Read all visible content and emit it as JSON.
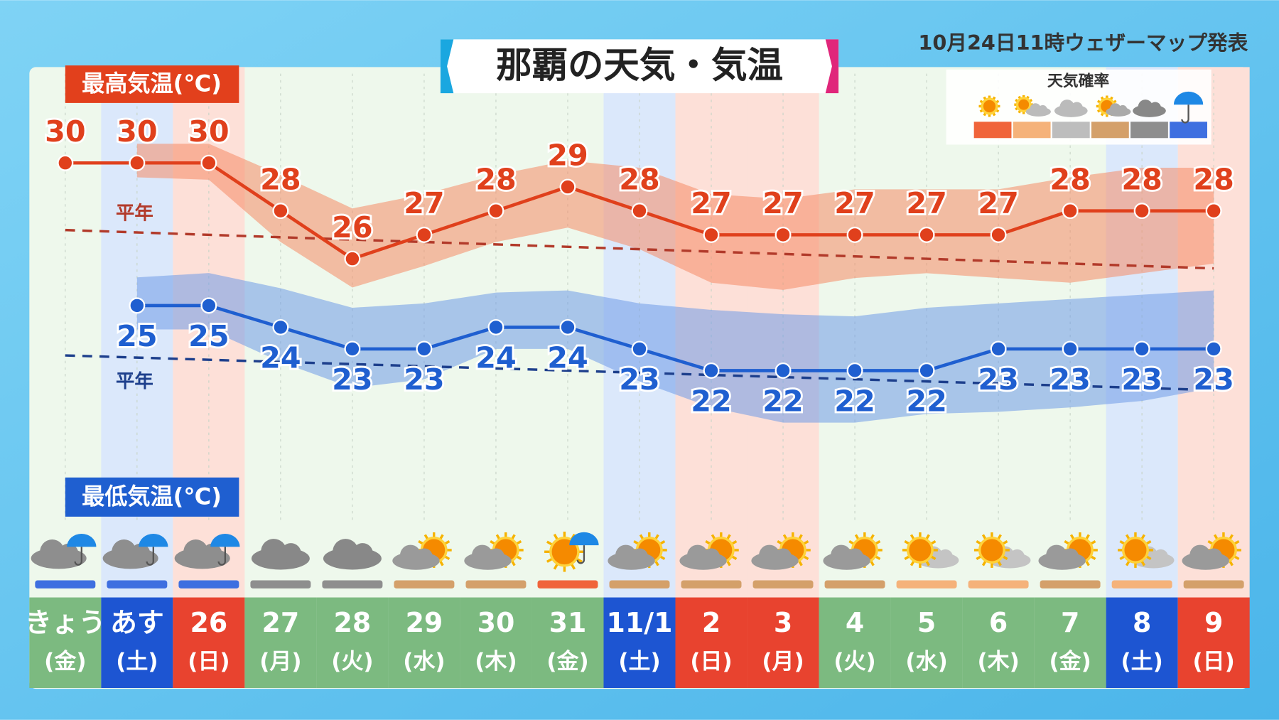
{
  "chart_data": {
    "type": "line",
    "title": "那覇の天気・気温",
    "subtitle": "10月24日11時ウェザーマップ発表",
    "categories": [
      "きょう",
      "あす",
      "26",
      "27",
      "28",
      "29",
      "30",
      "31",
      "11/1",
      "2",
      "3",
      "4",
      "5",
      "6",
      "7",
      "8",
      "9"
    ],
    "weekdays": [
      "(金)",
      "(土)",
      "(日)",
      "(月)",
      "(火)",
      "(水)",
      "(木)",
      "(金)",
      "(土)",
      "(日)",
      "(月)",
      "(火)",
      "(水)",
      "(木)",
      "(金)",
      "(土)",
      "(日)"
    ],
    "column_colors": [
      "#7cba80",
      "#1d55d2",
      "#e8432f",
      "#7cba80",
      "#7cba80",
      "#7cba80",
      "#7cba80",
      "#7cba80",
      "#1d55d2",
      "#e8432f",
      "#e8432f",
      "#7cba80",
      "#7cba80",
      "#7cba80",
      "#7cba80",
      "#1d55d2",
      "#e8432f"
    ],
    "weather": [
      "cloud-rain",
      "cloud-rain",
      "cloud-rain",
      "cloud",
      "cloud",
      "cloud-sun",
      "cloud-sun",
      "sun-rain",
      "cloud-sun",
      "cloud-sun",
      "cloud-sun",
      "cloud-sun",
      "sun-cloud",
      "sun-cloud",
      "cloud-sun",
      "sun-cloud",
      "cloud-sun"
    ],
    "series": [
      {
        "name": "最高気温(℃)",
        "color": "#e0401c",
        "values": [
          30,
          30,
          30,
          28,
          26,
          27,
          28,
          29,
          28,
          27,
          27,
          27,
          27,
          27,
          28,
          28,
          28
        ]
      },
      {
        "name": "最低気温(℃)",
        "color": "#1f5fd0",
        "axis": "y2",
        "values": [
          null,
          25,
          25,
          24,
          23,
          23,
          24,
          24,
          23,
          22,
          22,
          22,
          22,
          23,
          23,
          23,
          23
        ]
      }
    ],
    "bands": [
      {
        "color": "#f58a66",
        "upper": [
          null,
          30.8,
          30.8,
          29.5,
          28.1,
          28.7,
          29.5,
          30.1,
          29.8,
          28.7,
          28.5,
          28.9,
          28.9,
          28.9,
          29.4,
          29.8,
          29.8
        ],
        "lower": [
          null,
          29.4,
          29.3,
          26.7,
          24.8,
          25.7,
          26.7,
          27.3,
          26.4,
          25.0,
          24.7,
          25.2,
          25.4,
          25.2,
          25.0,
          25.4,
          25.8
        ]
      },
      {
        "color": "#6f9ae8",
        "axis": "y2",
        "upper": [
          null,
          26.3,
          26.5,
          25.8,
          24.9,
          25.1,
          25.6,
          25.7,
          25.1,
          24.8,
          24.6,
          24.5,
          24.9,
          25.1,
          25.3,
          25.5,
          25.7
        ],
        "lower": [
          null,
          23.9,
          23.9,
          22.4,
          21.2,
          21.6,
          23.0,
          23.0,
          21.5,
          20.3,
          19.6,
          19.6,
          20.0,
          20.1,
          20.3,
          20.6,
          21.2
        ]
      }
    ],
    "normals": [
      {
        "name": "平年",
        "color": "#b23a2a",
        "values": [
          27.2,
          25.6
        ]
      },
      {
        "name": "平年",
        "color": "#1d3f8c",
        "axis": "y2",
        "values": [
          22.7,
          21.1
        ]
      }
    ],
    "ylim": [
      15,
      34
    ],
    "y2lim": [
      15,
      36
    ],
    "legend": {
      "title": "天気確率",
      "colors": [
        "#f0643a",
        "#f5b27a",
        "#bdbdbd",
        "#d4a06a",
        "#8e8e8e",
        "#3e6fe0"
      ]
    }
  }
}
